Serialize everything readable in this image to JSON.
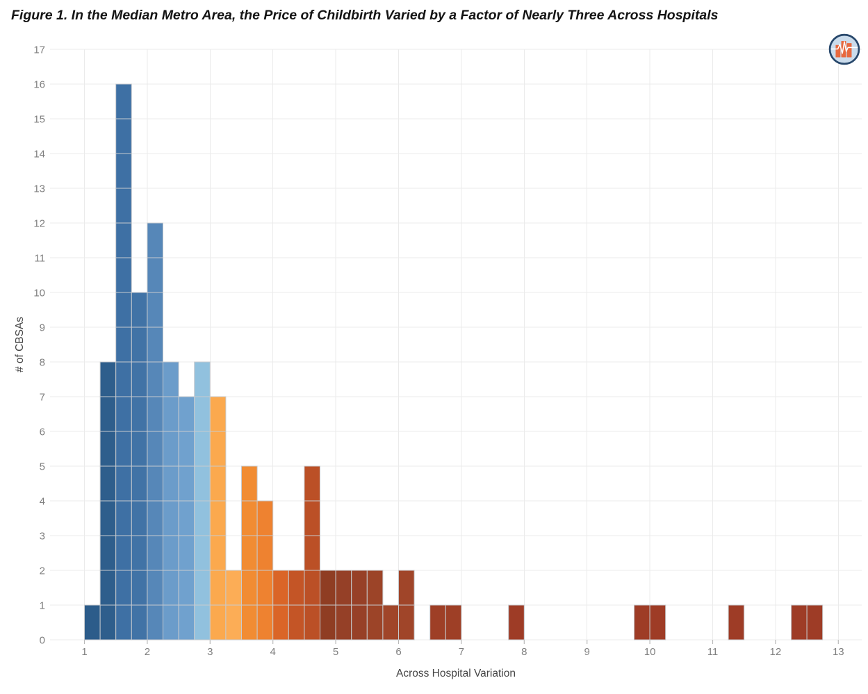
{
  "figure": {
    "background": "#ffffff"
  },
  "logo": {
    "name": "health-pulse-chart-logo",
    "circle_fill": "#cbdcec",
    "ring_color": "#27476b",
    "bar_color": "#e8693f",
    "pulse_color": "#ffffff"
  },
  "chart_data": {
    "type": "bar",
    "variant": "unit_histogram",
    "title": "Figure 1. In the Median Metro Area, the Price of Childbirth Varied by a Factor of Nearly Three Across Hospitals",
    "xlabel": "Across Hospital Variation",
    "ylabel": "# of CBSAs",
    "xlim": [
      0.45,
      13.37
    ],
    "ylim": [
      0,
      17
    ],
    "x_ticks": [
      1,
      2,
      3,
      4,
      5,
      6,
      7,
      8,
      9,
      10,
      11,
      12,
      13
    ],
    "y_ticks": [
      0,
      1,
      2,
      3,
      4,
      5,
      6,
      7,
      8,
      9,
      10,
      11,
      12,
      13,
      14,
      15,
      16,
      17
    ],
    "bin_width": 0.25,
    "grid": true,
    "legend": false,
    "style": {
      "gridline_color": "#ebebeb",
      "cell_border_color": "#c7cace",
      "axis_tick_color": "#b9b9b9",
      "tick_label_color": "#7f7f7f",
      "axis_title_color": "#454545"
    },
    "bins": [
      {
        "x": 1.0,
        "n": 1,
        "color": "#2c5c8a"
      },
      {
        "x": 1.25,
        "n": 8,
        "color": "#2e5e8c"
      },
      {
        "x": 1.5,
        "n": 16,
        "color": "#3e70a4"
      },
      {
        "x": 1.75,
        "n": 10,
        "color": "#4173a6"
      },
      {
        "x": 2.0,
        "n": 12,
        "color": "#5687b8"
      },
      {
        "x": 2.25,
        "n": 8,
        "color": "#6b9cca"
      },
      {
        "x": 2.5,
        "n": 7,
        "color": "#70a1ce"
      },
      {
        "x": 2.75,
        "n": 8,
        "color": "#91c1de"
      },
      {
        "x": 3.0,
        "n": 7,
        "color": "#fba94e"
      },
      {
        "x": 3.25,
        "n": 2,
        "color": "#fcad56"
      },
      {
        "x": 3.5,
        "n": 5,
        "color": "#f18c33"
      },
      {
        "x": 3.75,
        "n": 4,
        "color": "#ee8230"
      },
      {
        "x": 4.0,
        "n": 2,
        "color": "#da6527"
      },
      {
        "x": 4.25,
        "n": 2,
        "color": "#c45526"
      },
      {
        "x": 4.5,
        "n": 5,
        "color": "#bb5026"
      },
      {
        "x": 4.75,
        "n": 2,
        "color": "#8f3d23"
      },
      {
        "x": 5.0,
        "n": 2,
        "color": "#954027"
      },
      {
        "x": 5.25,
        "n": 2,
        "color": "#974027"
      },
      {
        "x": 5.5,
        "n": 2,
        "color": "#9c4428"
      },
      {
        "x": 5.75,
        "n": 1,
        "color": "#a04529"
      },
      {
        "x": 6.0,
        "n": 2,
        "color": "#a04529"
      },
      {
        "x": 6.5,
        "n": 1,
        "color": "#9e3f26"
      },
      {
        "x": 6.75,
        "n": 1,
        "color": "#9e3f26"
      },
      {
        "x": 7.75,
        "n": 1,
        "color": "#9e3c26"
      },
      {
        "x": 9.75,
        "n": 1,
        "color": "#9e3c26"
      },
      {
        "x": 10.0,
        "n": 1,
        "color": "#9e3c26"
      },
      {
        "x": 11.25,
        "n": 1,
        "color": "#9e3c26"
      },
      {
        "x": 12.25,
        "n": 1,
        "color": "#9e3c26"
      },
      {
        "x": 12.5,
        "n": 1,
        "color": "#9e3c26"
      }
    ]
  }
}
